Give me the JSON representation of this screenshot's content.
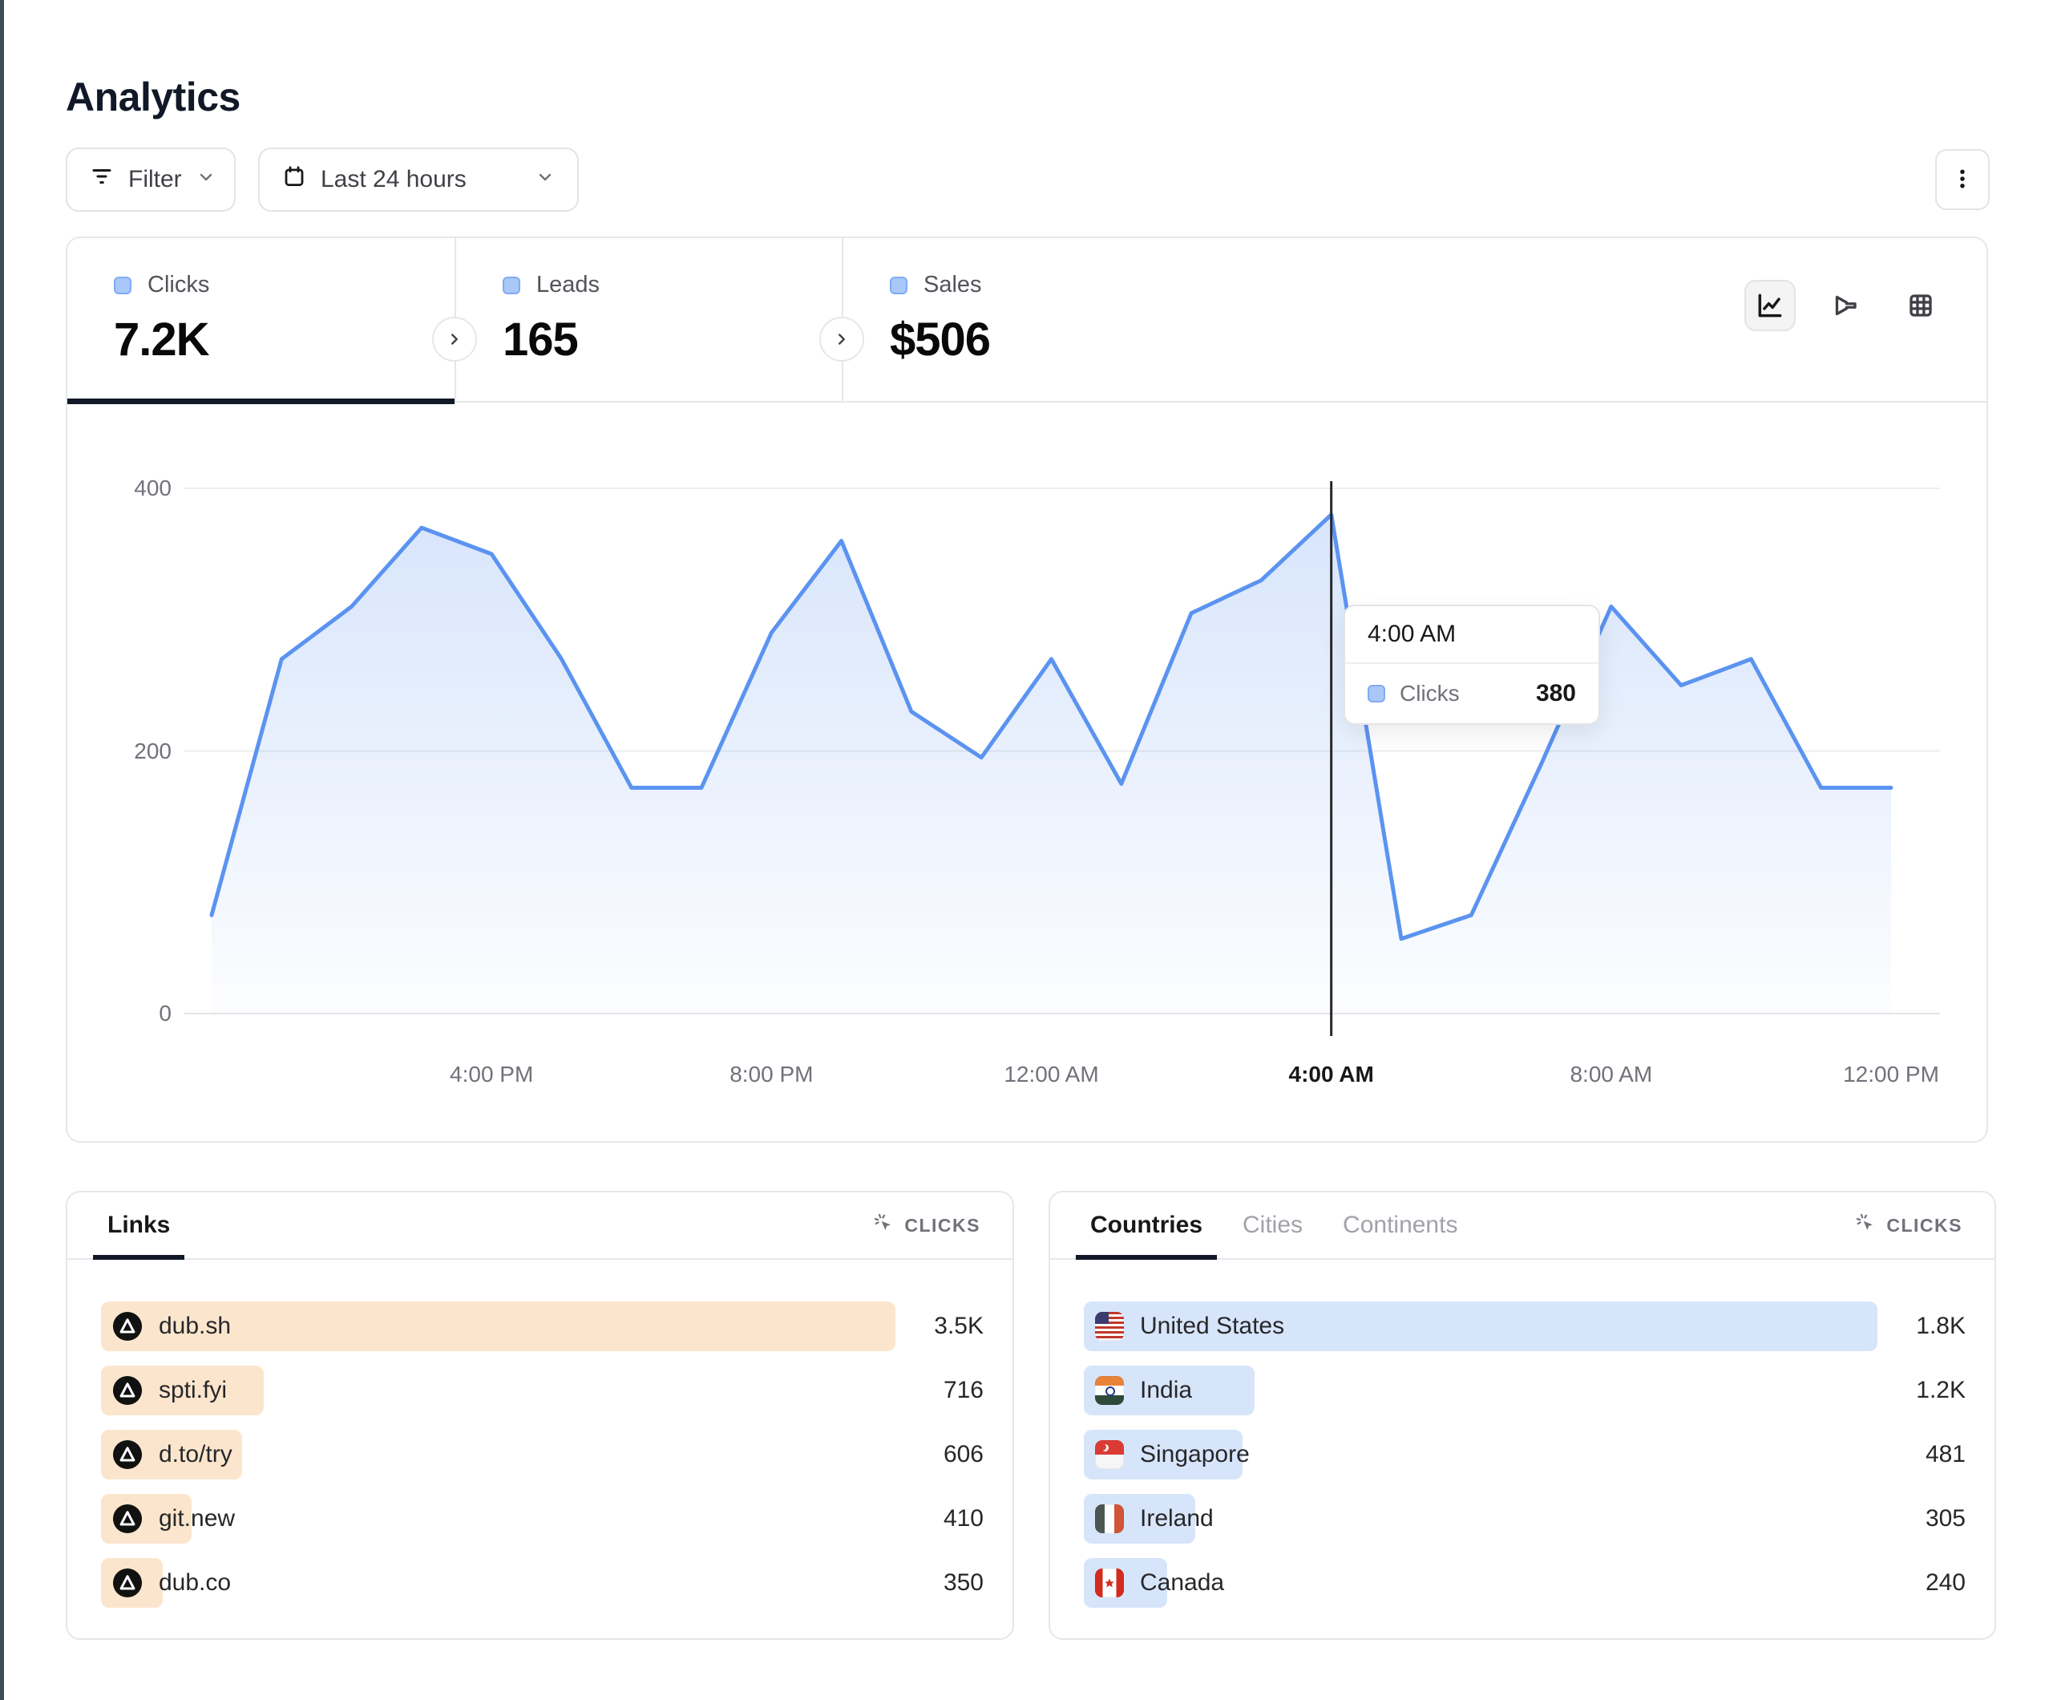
{
  "page": {
    "title": "Analytics"
  },
  "toolbar": {
    "filter_label": "Filter",
    "date_range": "Last 24 hours"
  },
  "stats": {
    "tabs": [
      {
        "label": "Clicks",
        "value": "7.2K",
        "active": true
      },
      {
        "label": "Leads",
        "value": "165",
        "active": false
      },
      {
        "label": "Sales",
        "value": "$506",
        "active": false
      }
    ]
  },
  "view_toggle": {
    "active": "line-chart",
    "options": [
      "line-chart",
      "funnel-chart",
      "table"
    ]
  },
  "chart_data": {
    "type": "area",
    "series_name": "Clicks",
    "x": [
      "12:00 PM",
      "1:00 PM",
      "2:00 PM",
      "3:00 PM",
      "4:00 PM",
      "5:00 PM",
      "6:00 PM",
      "7:00 PM",
      "8:00 PM",
      "9:00 PM",
      "10:00 PM",
      "11:00 PM",
      "12:00 AM",
      "1:00 AM",
      "2:00 AM",
      "3:00 AM",
      "4:00 AM",
      "5:00 AM",
      "6:00 AM",
      "7:00 AM",
      "8:00 AM",
      "9:00 AM",
      "10:00 AM",
      "11:00 AM",
      "12:00 PM"
    ],
    "values": [
      75,
      270,
      310,
      370,
      350,
      270,
      172,
      172,
      290,
      360,
      230,
      195,
      270,
      175,
      305,
      330,
      380,
      57,
      75,
      190,
      310,
      250,
      270,
      172,
      172
    ],
    "x_tick_labels": [
      "4:00 PM",
      "8:00 PM",
      "12:00 AM",
      "4:00 AM",
      "8:00 AM",
      "12:00 PM"
    ],
    "x_tick_indices": [
      4,
      8,
      12,
      16,
      20,
      24
    ],
    "y_ticks": [
      0,
      200,
      400
    ],
    "ylim": [
      0,
      400
    ],
    "grid": "horizontal",
    "legend_position": "none",
    "hover_index": 16,
    "line_color": "#5b93f0",
    "area_color": "#5b93f0"
  },
  "tooltip": {
    "time": "4:00 AM",
    "series": "Clicks",
    "value": "380"
  },
  "links_card": {
    "tab_label": "Links",
    "metric_label": "CLICKS",
    "bar_color": "#fbe6cd",
    "rows": [
      {
        "name": "dub.sh",
        "value": "3.5K",
        "bar_pct": 100
      },
      {
        "name": "spti.fyi",
        "value": "716",
        "bar_pct": 20.5
      },
      {
        "name": "d.to/try",
        "value": "606",
        "bar_pct": 17.8
      },
      {
        "name": "git.new",
        "value": "410",
        "bar_pct": 11.4
      },
      {
        "name": "dub.co",
        "value": "350",
        "bar_pct": 7.8
      }
    ]
  },
  "countries_card": {
    "tabs": [
      {
        "label": "Countries",
        "active": true
      },
      {
        "label": "Cities",
        "active": false
      },
      {
        "label": "Continents",
        "active": false
      }
    ],
    "metric_label": "CLICKS",
    "bar_color": "#d7e5fa",
    "rows": [
      {
        "name": "United States",
        "flag": "us",
        "value": "1.8K",
        "bar_pct": 100
      },
      {
        "name": "India",
        "flag": "in",
        "value": "1.2K",
        "bar_pct": 21.5
      },
      {
        "name": "Singapore",
        "flag": "sg",
        "value": "481",
        "bar_pct": 20
      },
      {
        "name": "Ireland",
        "flag": "ie",
        "value": "305",
        "bar_pct": 14
      },
      {
        "name": "Canada",
        "flag": "ca",
        "value": "240",
        "bar_pct": 10.5
      }
    ]
  }
}
